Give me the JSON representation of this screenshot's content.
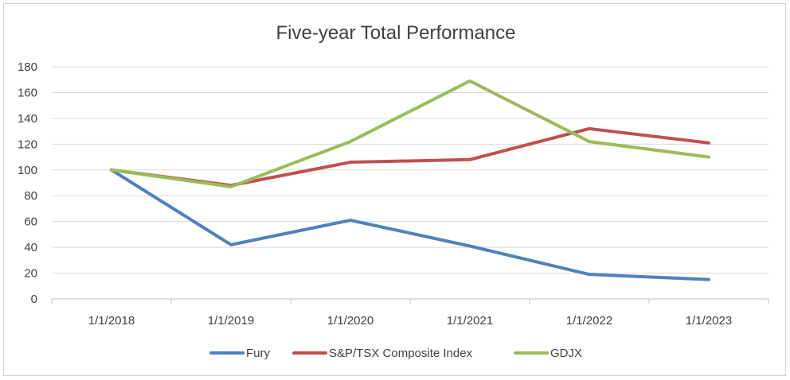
{
  "chart_data": {
    "type": "line",
    "title": "Five-year Total Performance",
    "xlabel": "",
    "ylabel": "",
    "categories": [
      "1/1/2018",
      "1/1/2019",
      "1/1/2020",
      "1/1/2021",
      "1/1/2022",
      "1/1/2023"
    ],
    "ylim": [
      0,
      180
    ],
    "yticks": [
      0,
      20,
      40,
      60,
      80,
      100,
      120,
      140,
      160,
      180
    ],
    "grid": true,
    "legend_position": "bottom",
    "series": [
      {
        "name": "Fury",
        "color": "#4f81bd",
        "values": [
          100,
          42,
          61,
          41,
          19,
          15
        ]
      },
      {
        "name": "S&P/TSX Composite Index",
        "color": "#c0504d",
        "values": [
          100,
          88,
          106,
          108,
          132,
          121
        ]
      },
      {
        "name": "GDJX",
        "color": "#9bbb59",
        "values": [
          100,
          87,
          122,
          169,
          122,
          110
        ]
      }
    ]
  }
}
